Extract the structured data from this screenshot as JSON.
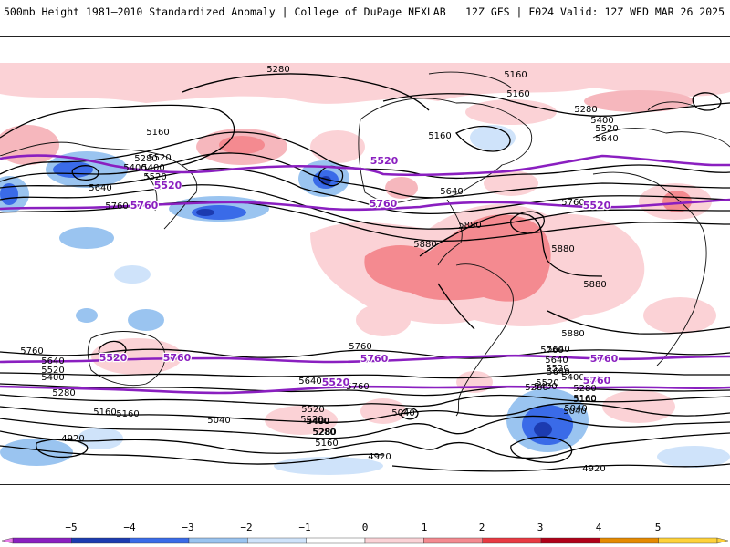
{
  "header": {
    "left": "500mb Height 1981–2010 Standardized Anomaly | College of DuPage NEXLAB",
    "right": "12Z GFS | F024 Valid: 12Z WED MAR 26 2025"
  },
  "contour_labels": [
    "5280",
    "5160",
    "5160",
    "5280",
    "5400",
    "5520",
    "5640",
    "5160",
    "5400",
    "5520",
    "5160",
    "5280",
    "5400",
    "5520",
    "5640",
    "5760",
    "5880",
    "5880",
    "5880",
    "5880",
    "5880",
    "5160",
    "5280",
    "5400",
    "5520",
    "5640",
    "5760",
    "5640",
    "5760",
    "5640",
    "5520",
    "5400",
    "5280",
    "5160",
    "5040",
    "4920",
    "5760",
    "5640",
    "5520",
    "5400",
    "5280",
    "5160",
    "5040",
    "5040",
    "5520",
    "5400",
    "5280",
    "5160",
    "4920",
    "5280",
    "5400",
    "5520",
    "5640",
    "5760",
    "5160",
    "5040",
    "4920",
    "5760",
    "5640"
  ],
  "highlight_labels": [
    "5520",
    "5760",
    "5520",
    "5760",
    "5520",
    "5760",
    "5760",
    "5520",
    "5520",
    "5760",
    "5760",
    "5520"
  ],
  "colorbar": {
    "labels": [
      "−5",
      "−4",
      "−3",
      "−2",
      "−1",
      "0",
      "1",
      "2",
      "3",
      "4",
      "5"
    ],
    "colors": [
      "#e87be8",
      "#8a1fc0",
      "#1c3bb0",
      "#3a6be8",
      "#9ac4f0",
      "#cfe3fa",
      "#ffffff",
      "#fbd2d6",
      "#f48a90",
      "#e83a42",
      "#b00018",
      "#e58a00",
      "#ffd23a"
    ]
  }
}
